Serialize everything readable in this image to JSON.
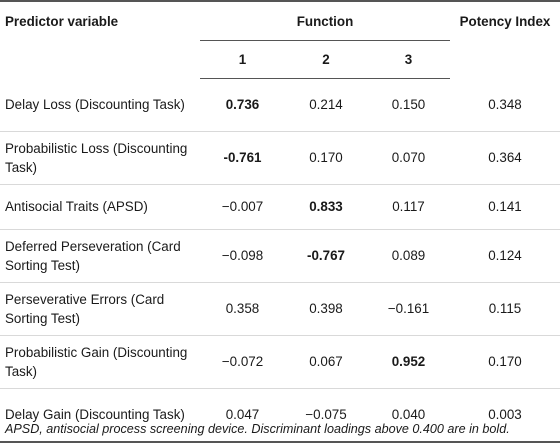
{
  "table": {
    "header": {
      "predictor_label": "Predictor variable",
      "function_label": "Function",
      "potency_label": "Potency Index",
      "function_numbers": [
        "1",
        "2",
        "3"
      ]
    },
    "rows": [
      {
        "predictor": "Delay Loss (Discounting Task)",
        "f1": "0.736",
        "f2": "0.214",
        "f3": "0.150",
        "potency": "0.348",
        "bold": "f1"
      },
      {
        "predictor": "Probabilistic Loss (Discounting Task)",
        "f1": "-0.761",
        "f2": "0.170",
        "f3": "0.070",
        "potency": "0.364",
        "bold": "f1"
      },
      {
        "predictor": "Antisocial Traits (APSD)",
        "f1": "−0.007",
        "f2": "0.833",
        "f3": "0.117",
        "potency": "0.141",
        "bold": "f2"
      },
      {
        "predictor": "Deferred Perseveration (Card Sorting Test)",
        "f1": "−0.098",
        "f2": "-0.767",
        "f3": "0.089",
        "potency": "0.124",
        "bold": "f2"
      },
      {
        "predictor": "Perseverative Errors (Card Sorting Test)",
        "f1": "0.358",
        "f2": "0.398",
        "f3": "−0.161",
        "potency": "0.115",
        "bold": ""
      },
      {
        "predictor": "Probabilistic Gain (Discounting Task)",
        "f1": "−0.072",
        "f2": "0.067",
        "f3": "0.952",
        "potency": "0.170",
        "bold": "f3"
      },
      {
        "predictor": "Delay Gain (Discounting Task)",
        "f1": "0.047",
        "f2": "−0.075",
        "f3": "0.040",
        "potency": "0.003",
        "bold": ""
      }
    ]
  },
  "footnote": "APSD, antisocial process screening device. Discriminant loadings above 0.400 are in bold."
}
